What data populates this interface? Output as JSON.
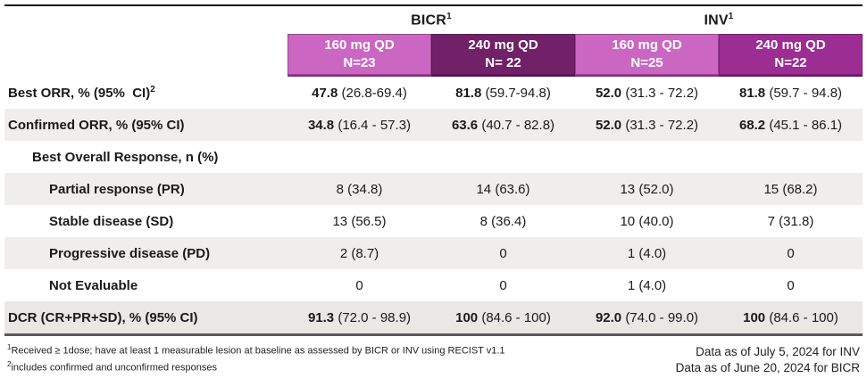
{
  "colors": {
    "header_light_pink": "#cb67c3",
    "header_dark_purple": "#702167",
    "header_medium_purple": "#9c2d92",
    "stripe_gray": "#f0eeed",
    "stripe_gray_strong": "#eae8e5",
    "top_rule": "#111111",
    "bottom_rule": "#59595b"
  },
  "header": {
    "groups": [
      {
        "text": "BICR",
        "sup": "1"
      },
      {
        "text": "INV",
        "sup": "1"
      }
    ],
    "columns": [
      {
        "line1": "160 mg QD",
        "line2": "N=23",
        "bg": "#cb67c3"
      },
      {
        "line1": "240 mg QD",
        "line2": "N= 22",
        "bg": "#702167"
      },
      {
        "line1": "160 mg QD",
        "line2": "N=25",
        "bg": "#cb67c3"
      },
      {
        "line1": "240 mg QD",
        "line2": "N=22",
        "bg": "#9c2d92"
      }
    ]
  },
  "rows": [
    {
      "label": "Best ORR, % (95%  CI)",
      "sup": "2",
      "indent": 0,
      "shade": "none",
      "cells": [
        {
          "b": "47.8",
          "t": " (26.8-69.4)"
        },
        {
          "b": "81.8",
          "t": " (59.7-94.8)"
        },
        {
          "b": "52.0",
          "t": " (31.3 - 72.2)"
        },
        {
          "b": "81.8",
          "t": " (59.7 - 94.8)"
        }
      ]
    },
    {
      "label": "Confirmed ORR, % (95% CI)",
      "sup": "",
      "indent": 0,
      "shade": "gray",
      "cells": [
        {
          "b": "34.8",
          "t": " (16.4 - 57.3)"
        },
        {
          "b": "63.6",
          "t": " (40.7 - 82.8)"
        },
        {
          "b": "52.0",
          "t": " (31.3 - 72.2)"
        },
        {
          "b": "68.2",
          "t": " (45.1 - 86.1)"
        }
      ]
    },
    {
      "label": "Best Overall Response, n (%)",
      "sup": "",
      "indent": 1,
      "shade": "none",
      "cells": [
        {
          "b": "",
          "t": ""
        },
        {
          "b": "",
          "t": ""
        },
        {
          "b": "",
          "t": ""
        },
        {
          "b": "",
          "t": ""
        }
      ]
    },
    {
      "label": "Partial response (PR)",
      "sup": "",
      "indent": 2,
      "shade": "gray",
      "cells": [
        {
          "b": "",
          "t": "8 (34.8)"
        },
        {
          "b": "",
          "t": "14 (63.6)"
        },
        {
          "b": "",
          "t": "13 (52.0)"
        },
        {
          "b": "",
          "t": "15 (68.2)"
        }
      ]
    },
    {
      "label": "Stable disease (SD)",
      "sup": "",
      "indent": 2,
      "shade": "none",
      "cells": [
        {
          "b": "",
          "t": "13 (56.5)"
        },
        {
          "b": "",
          "t": "8 (36.4)"
        },
        {
          "b": "",
          "t": "10 (40.0)"
        },
        {
          "b": "",
          "t": "7 (31.8)"
        }
      ]
    },
    {
      "label": "Progressive disease (PD)",
      "sup": "",
      "indent": 2,
      "shade": "gray",
      "cells": [
        {
          "b": "",
          "t": "2 (8.7)"
        },
        {
          "b": "",
          "t": "0"
        },
        {
          "b": "",
          "t": "1 (4.0)"
        },
        {
          "b": "",
          "t": "0"
        }
      ]
    },
    {
      "label": "Not Evaluable",
      "sup": "",
      "indent": 2,
      "shade": "none",
      "cells": [
        {
          "b": "",
          "t": "0"
        },
        {
          "b": "",
          "t": "0"
        },
        {
          "b": "",
          "t": "1 (4.0)"
        },
        {
          "b": "",
          "t": "0"
        }
      ]
    },
    {
      "label": "DCR (CR+PR+SD), % (95% CI)",
      "sup": "",
      "indent": 0,
      "shade": "gray-strong",
      "cells": [
        {
          "b": "91.3",
          "t": " (72.0 - 98.9)"
        },
        {
          "b": "100",
          "t": " (84.6 - 100)"
        },
        {
          "b": "92.0",
          "t": " (74.0 - 99.0)"
        },
        {
          "b": "100",
          "t": " (84.6 - 100)"
        }
      ]
    }
  ],
  "footnotes": {
    "left": [
      {
        "sup": "1",
        "text": "Received ≥ 1dose; have at least 1 measurable lesion at baseline as assessed by BICR or INV using RECIST v1.1"
      },
      {
        "sup": "2",
        "text": "includes confirmed and unconfirmed responses"
      }
    ],
    "right": [
      "Data as of July 5, 2024 for INV",
      "Data as of June 20, 2024 for BICR"
    ]
  }
}
